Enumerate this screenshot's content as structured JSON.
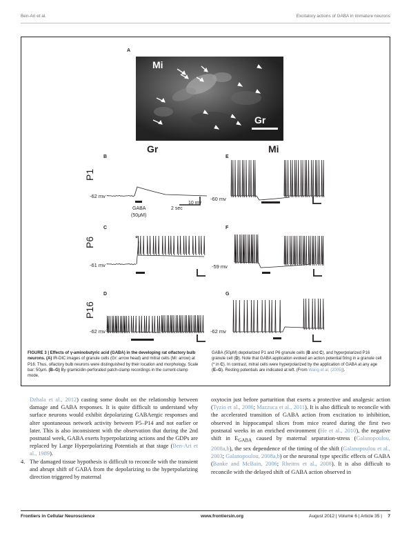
{
  "running_head": {
    "left": "Ben-Ari et al.",
    "right": "Excitatory actions of GABA in immature neurons"
  },
  "figure": {
    "panel_a": {
      "letter": "A",
      "label_mi": "Mi",
      "label_gr": "Gr"
    },
    "column_headers": {
      "left": "Gr",
      "right": "Mi"
    },
    "rows": [
      {
        "age": "P1"
      },
      {
        "age": "P6"
      },
      {
        "age": "P16"
      }
    ],
    "panels": {
      "B": {
        "letter": "B",
        "resting": "-62 mv"
      },
      "C": {
        "letter": "C",
        "resting": "-61 mv",
        "asterisk": "*"
      },
      "D": {
        "letter": "D",
        "resting": "-62  mv"
      },
      "E": {
        "letter": "E",
        "resting": "-60 mv"
      },
      "F": {
        "letter": "F",
        "resting": "-59 mv"
      },
      "G": {
        "letter": "G",
        "resting": "-62  mv"
      }
    },
    "scale": {
      "gaba_label": "GABA",
      "gaba_conc": "(50μM)",
      "voltage": "10 mv",
      "time": "2 sec"
    },
    "caption_left_segments": [
      {
        "text": "FIGURE 3 | Effects of γ-aminobutyric acid (GABA) in the developing rat olfactory bulb neurons.",
        "bold": true
      },
      {
        "text": " "
      },
      {
        "text": "(A)",
        "bold": true
      },
      {
        "text": " IR-DIC images of granule cells (Gr: arrow head) and mitral cells (Mi: arrow) at P16. Thus, olfactory bulb neurons were distinguished by their location and morphology. Scale bar: 50μm. "
      },
      {
        "text": "(B–G)",
        "bold": true
      },
      {
        "text": " By gramicidin-perforated patch-clamp recordings in the current-clamp mode,"
      }
    ],
    "caption_right_segments": [
      {
        "text": "GABA (50μM) depolarized P1 and P6 granule cells ("
      },
      {
        "text": "B",
        "bold": true
      },
      {
        "text": " and "
      },
      {
        "text": "C",
        "bold": true
      },
      {
        "text": "), and hyperpolarized P16 granule cell ("
      },
      {
        "text": "D",
        "bold": true
      },
      {
        "text": "). Note that GABA application evoked an action potential firing in a granule cell (* in "
      },
      {
        "text": "C",
        "bold": true
      },
      {
        "text": "). In contrast, mitral cells were hyperpolarized by the application of GABA at any age ("
      },
      {
        "text": "E–G",
        "bold": true
      },
      {
        "text": "). Resting potentials are indicated at left. (From "
      },
      {
        "text": "Wang et al. (2005)",
        "ref": true
      },
      {
        "text": ")."
      }
    ]
  },
  "body": {
    "left_para_segments": [
      {
        "text": "Dzhala et al., 2012",
        "ref": true
      },
      {
        "text": ") casting some doubt on the relationship between damage and GABA responses. It is quite difficult to understand why surface neurons would exhibit depolarizing GABAergic responses and alter spontaneous network activity between P5–P14 and not earlier or later. This is also inconsistent with the observation that during the 2nd postnatal week, GABA exerts hyperpolarizing actions and the GDPs are replaced by Large Hyperpolarizing Potentials at that stage ("
      },
      {
        "text": "Ben-Ari et al., 1989",
        "ref": true
      },
      {
        "text": ")."
      }
    ],
    "left_item": {
      "number": "4.",
      "text": "The damaged tissue hypothesis is difficult to reconcile with the transient and abrupt shift of GABA from the depolarizing to the hyperpolarizing direction triggered by maternal"
    },
    "right_para_segments": [
      {
        "text": "oxytocin just before parturition that exerts a protective and analgesic action ("
      },
      {
        "text": "Tyzio et al., 2006",
        "ref": true
      },
      {
        "text": "; "
      },
      {
        "text": "Mazzuca et al., 2011",
        "ref": true
      },
      {
        "text": "). It is also difficult to reconcile with the accelerated transition of GABA action from excitation to inhibition, observed in hippocampal slices from mice reared during the first two postnatal weeks in an enriched environment ("
      },
      {
        "text": "He et al., 2010",
        "ref": true
      },
      {
        "text": "), the negative shift in E"
      },
      {
        "text": "GABA",
        "sub": true
      },
      {
        "text": " caused by maternal separation-stress ("
      },
      {
        "text": "Galanopoulou, 2008a,b",
        "ref": true
      },
      {
        "text": "), the sex dependence of the timing of the shift ("
      },
      {
        "text": "Galanopoulou et al., 2003",
        "ref": true
      },
      {
        "text": "; "
      },
      {
        "text": "Galanopoulou, 2008a,b",
        "ref": true
      },
      {
        "text": ") or the neuronal type specific effects of GABA ("
      },
      {
        "text": "Banke and McBain, 2006",
        "ref": true
      },
      {
        "text": "; "
      },
      {
        "text": "Rheims et al., 2008",
        "ref": true
      },
      {
        "text": "). It is also difficult to reconcile with the delayed shift of GABA action observed in"
      }
    ]
  },
  "footer": {
    "journal": "Frontiers in Cellular Neuroscience",
    "url": "www.frontiersin.org",
    "meta": "August 2012 | Volume 6 | Article 35 |",
    "page": "7"
  }
}
